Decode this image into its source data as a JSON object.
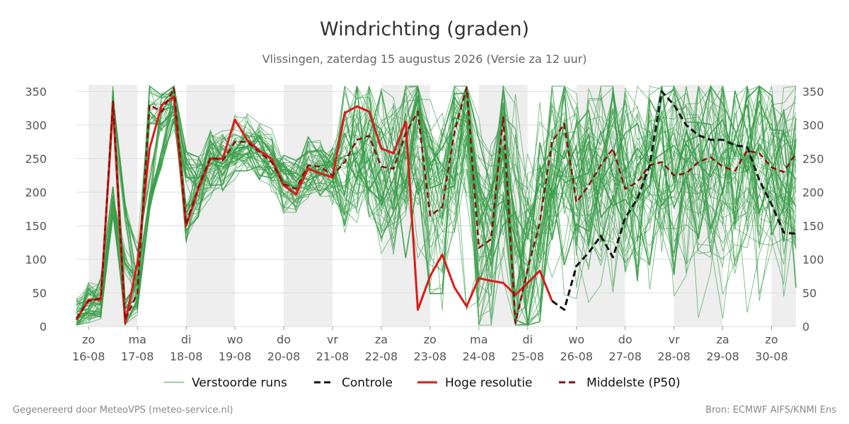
{
  "header": {
    "title": "Windrichting (graden)",
    "subtitle": "Vlissingen, zaterdag 15 augustus 2026 (Versie za 12 uur)"
  },
  "footer": {
    "left": "Gegenereerd door MeteoVPS (meteo-service.nl)",
    "right": "Bron: ECMWF AIFS/KNMI Ens"
  },
  "colors": {
    "ensemble": "#3a9e4a",
    "control": "#111111",
    "high_res": "#dd1a1a",
    "median": "#8b0e0e",
    "weekend_band": "#eeeeee",
    "grid": "#dddddd"
  },
  "chart_data": {
    "type": "line",
    "title": "Windrichting (graden)",
    "subtitle": "Vlissingen, zaterdag 15 augustus 2026 (Versie za 12 uur)",
    "ylim": [
      0,
      360
    ],
    "y_ticks": [
      0,
      50,
      100,
      150,
      200,
      250,
      300,
      350
    ],
    "y_axis_both_sides": true,
    "x_unit": "days since 16-08 00:00",
    "xlim": [
      -0.25,
      14.5
    ],
    "x_ticks": [
      {
        "x": 0,
        "day": "zo",
        "date": "16-08"
      },
      {
        "x": 1,
        "day": "ma",
        "date": "17-08"
      },
      {
        "x": 2,
        "day": "di",
        "date": "18-08"
      },
      {
        "x": 3,
        "day": "wo",
        "date": "19-08"
      },
      {
        "x": 4,
        "day": "do",
        "date": "20-08"
      },
      {
        "x": 5,
        "day": "vr",
        "date": "21-08"
      },
      {
        "x": 6,
        "day": "za",
        "date": "22-08"
      },
      {
        "x": 7,
        "day": "zo",
        "date": "23-08"
      },
      {
        "x": 8,
        "day": "ma",
        "date": "24-08"
      },
      {
        "x": 9,
        "day": "di",
        "date": "25-08"
      },
      {
        "x": 10,
        "day": "wo",
        "date": "26-08"
      },
      {
        "x": 11,
        "day": "do",
        "date": "27-08"
      },
      {
        "x": 12,
        "day": "vr",
        "date": "28-08"
      },
      {
        "x": 13,
        "day": "za",
        "date": "29-08"
      },
      {
        "x": 14,
        "day": "zo",
        "date": "30-08"
      }
    ],
    "shaded_bands": [
      [
        0,
        1
      ],
      [
        2,
        3
      ],
      [
        4,
        5
      ],
      [
        6,
        7
      ],
      [
        8,
        9
      ],
      [
        10,
        11
      ],
      [
        12,
        13
      ],
      [
        14,
        14.5
      ]
    ],
    "grid": true,
    "legend_position": "bottom-center",
    "legend": [
      {
        "label": "Verstoorde runs",
        "style": "thin-solid",
        "color_key": "ensemble"
      },
      {
        "label": "Controle",
        "style": "dashed",
        "color_key": "control"
      },
      {
        "label": "Hoge resolutie",
        "style": "thick-solid",
        "color_key": "high_res"
      },
      {
        "label": "Middelste (P50)",
        "style": "dashed",
        "color_key": "median"
      }
    ],
    "series": [
      {
        "name": "Hoge resolutie",
        "x": [
          -0.25,
          0,
          0.25,
          0.5,
          0.75,
          1.0,
          1.25,
          1.5,
          1.75,
          2.0,
          2.25,
          2.5,
          2.75,
          3.0,
          3.25,
          3.5,
          3.75,
          4.0,
          4.25,
          4.5,
          4.75,
          5.0,
          5.25,
          5.5,
          5.75,
          6.0,
          6.25,
          6.5,
          6.75,
          7.0,
          7.25,
          7.5,
          7.75,
          8.0,
          8.25,
          8.5,
          8.75,
          9.0,
          9.25,
          9.5
        ],
        "values": [
          10,
          40,
          40,
          330,
          5,
          95,
          265,
          330,
          342,
          150,
          205,
          250,
          250,
          308,
          278,
          262,
          250,
          210,
          197,
          235,
          228,
          222,
          318,
          328,
          320,
          265,
          258,
          305,
          25,
          75,
          107,
          58,
          30,
          72,
          68,
          65,
          47,
          65,
          83,
          38
        ]
      },
      {
        "name": "Middelste (P50)",
        "x": [
          -0.25,
          0,
          0.25,
          0.5,
          0.75,
          1.0,
          1.25,
          1.5,
          1.75,
          2.0,
          2.25,
          2.5,
          2.75,
          3.0,
          3.25,
          3.5,
          3.75,
          4.0,
          4.25,
          4.5,
          4.75,
          5.0,
          5.25,
          5.5,
          5.75,
          6.0,
          6.25,
          6.5,
          6.75,
          7.0,
          7.25,
          7.5,
          7.75,
          8.0,
          8.25,
          8.5,
          8.75,
          9.0,
          9.25,
          9.5,
          9.75,
          10.0,
          10.25,
          10.5,
          10.75,
          11.0,
          11.25,
          11.5,
          11.75,
          12.0,
          12.25,
          12.5,
          12.75,
          13.0,
          13.25,
          13.5,
          13.75,
          14.0,
          14.25,
          14.5
        ],
        "values": [
          12,
          38,
          42,
          335,
          10,
          50,
          330,
          320,
          355,
          152,
          208,
          252,
          247,
          275,
          275,
          260,
          245,
          212,
          205,
          240,
          238,
          225,
          245,
          278,
          284,
          238,
          235,
          288,
          320,
          165,
          178,
          290,
          356,
          117,
          130,
          312,
          5,
          85,
          155,
          275,
          302,
          185,
          210,
          240,
          265,
          205,
          215,
          240,
          245,
          225,
          228,
          245,
          252,
          238,
          232,
          262,
          258,
          237,
          230,
          258
        ]
      },
      {
        "name": "Controle",
        "x": [
          9.5,
          9.75,
          10.0,
          10.25,
          10.5,
          10.75,
          11.0,
          11.25,
          11.5,
          11.75,
          12.0,
          12.25,
          12.5,
          12.75,
          13.0,
          13.25,
          13.5,
          13.75,
          14.0,
          14.25,
          14.5
        ],
        "values": [
          38,
          25,
          90,
          110,
          135,
          103,
          162,
          190,
          240,
          350,
          330,
          300,
          285,
          278,
          278,
          270,
          267,
          218,
          182,
          140,
          138
        ]
      }
    ],
    "ensemble_runs": {
      "name": "Verstoorde runs",
      "count": 50,
      "x_start": -0.25,
      "x_end": 14.5,
      "x_step": 0.25
    }
  }
}
